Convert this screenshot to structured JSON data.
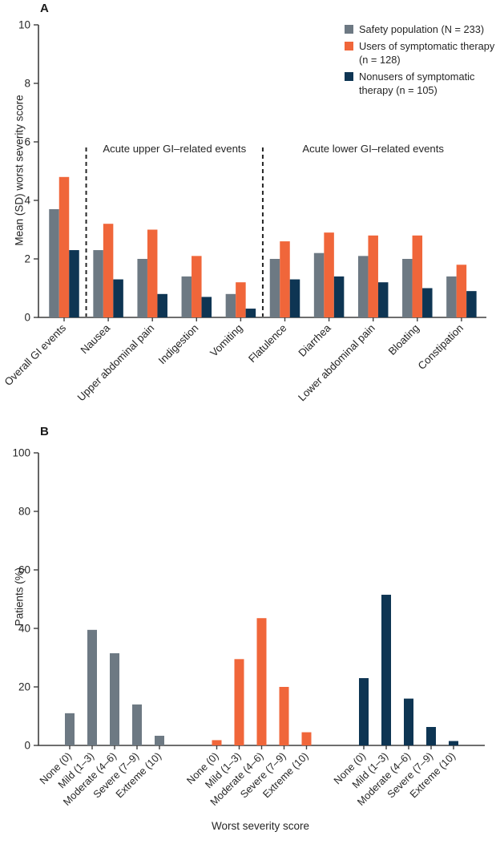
{
  "figure": {
    "panel_a_label": "A",
    "panel_b_label": "B"
  },
  "colors": {
    "safety_population": "#6d7983",
    "users_symptomatic": "#f0663a",
    "nonusers_symptomatic": "#0e3553",
    "axis": "#3f3f3f",
    "text": "#262626"
  },
  "legend": {
    "items": [
      {
        "label": "Safety population (N = 233)",
        "lines": [
          "Safety population (N = 233)"
        ],
        "color": "#6d7983"
      },
      {
        "label": "Users of symptomatic therapy (n = 128)",
        "lines": [
          "Users of symptomatic therapy",
          "(n = 128)"
        ],
        "color": "#f0663a"
      },
      {
        "label": "Nonusers of symptomatic therapy (n = 105)",
        "lines": [
          "Nonusers of symptomatic",
          "therapy (n = 105)"
        ],
        "color": "#0e3553"
      }
    ]
  },
  "chart_data": [
    {
      "type": "bar",
      "panel": "A",
      "ylabel": "Mean (SD) worst severity score",
      "ylim": [
        0,
        10
      ],
      "yticks": [
        0,
        2,
        4,
        6,
        8,
        10
      ],
      "grid": false,
      "legend_position": "top-right",
      "categories": [
        "Overall GI events",
        "Nausea",
        "Upper abdominal pain",
        "Indigestion",
        "Vomiting",
        "Flatulence",
        "Diarrhea",
        "Lower abdominal pain",
        "Bloating",
        "Constipation"
      ],
      "series": [
        {
          "name": "Safety population (N = 233)",
          "color": "#6d7983",
          "values": [
            3.7,
            2.3,
            2.0,
            1.4,
            0.8,
            2.0,
            2.2,
            2.1,
            2.0,
            1.4
          ]
        },
        {
          "name": "Users of symptomatic therapy (n = 128)",
          "color": "#f0663a",
          "values": [
            4.8,
            3.2,
            3.0,
            2.1,
            1.2,
            2.6,
            2.9,
            2.8,
            2.8,
            1.8
          ]
        },
        {
          "name": "Nonusers of symptomatic therapy (n = 105)",
          "color": "#0e3553",
          "values": [
            2.3,
            1.3,
            0.8,
            0.7,
            0.3,
            1.3,
            1.4,
            1.2,
            1.0,
            0.9
          ]
        }
      ],
      "separators_before_categories": [
        1,
        5
      ],
      "sections": [
        {
          "label": "Acute upper GI–related events",
          "from_category": 1,
          "to_category": 4
        },
        {
          "label": "Acute lower GI–related events",
          "from_category": 5,
          "to_category": 9
        }
      ]
    },
    {
      "type": "bar",
      "panel": "B",
      "ylabel": "Patients (%)",
      "xlabel": "Worst severity score",
      "ylim": [
        0,
        100
      ],
      "yticks": [
        0,
        20,
        40,
        60,
        80,
        100
      ],
      "grid": false,
      "categories": [
        "None (0)",
        "Mild (1–3)",
        "Moderate (4–6)",
        "Severe (7–9)",
        "Extreme (10)"
      ],
      "groups": [
        {
          "name": "Safety population (N = 233)",
          "color": "#6d7983",
          "values": [
            11,
            39.5,
            31.5,
            14,
            3.3
          ]
        },
        {
          "name": "Users of symptomatic therapy (n = 128)",
          "color": "#f0663a",
          "values": [
            1.8,
            29.5,
            43.5,
            20,
            4.5
          ]
        },
        {
          "name": "Nonusers of symptomatic therapy (n = 105)",
          "color": "#0e3553",
          "values": [
            23,
            51.5,
            16,
            6.3,
            1.5
          ]
        }
      ]
    }
  ]
}
